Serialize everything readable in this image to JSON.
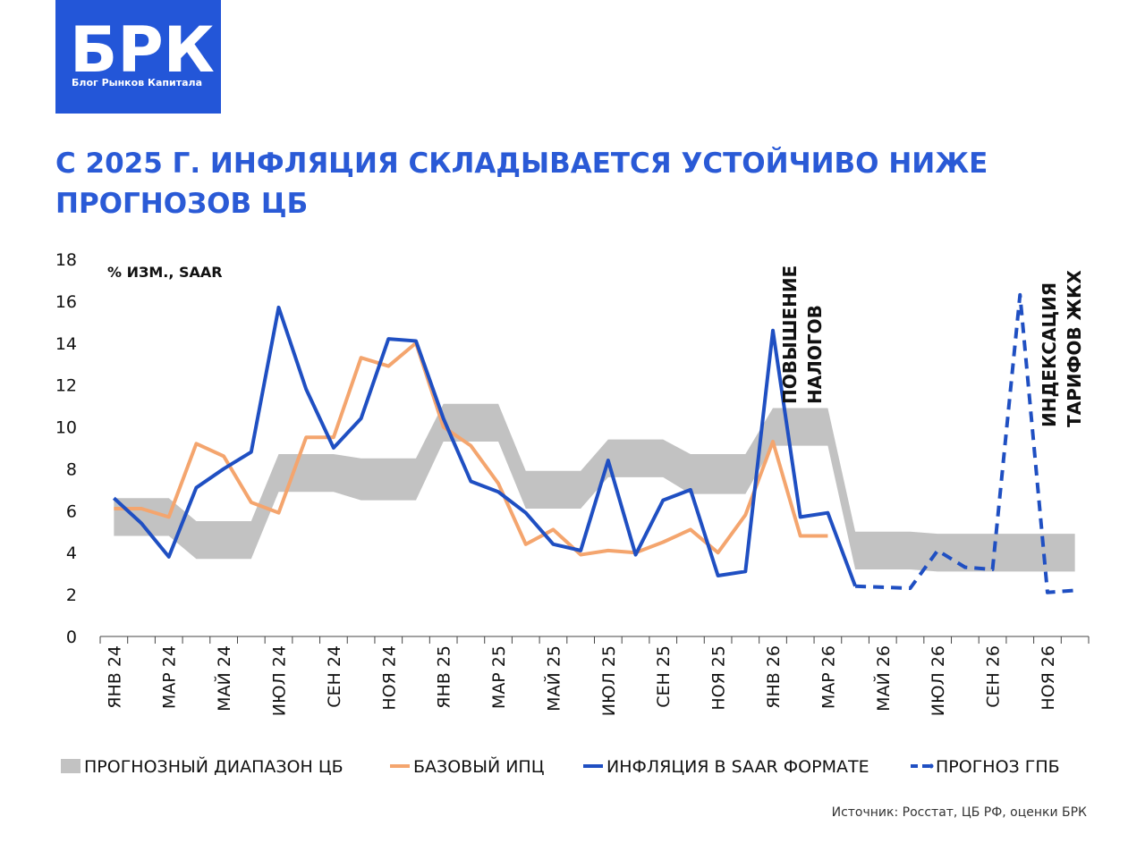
{
  "logo": {
    "title": "БРК",
    "subtitle": "Блог Рынков Капитала"
  },
  "chart_data": {
    "type": "line",
    "title": [
      "С 2025 Г. ИНФЛЯЦИЯ СКЛАДЫВАЕТСЯ УСТОЙЧИВО НИЖЕ",
      "ПРОГНОЗОВ ЦБ"
    ],
    "y_label": "% ИЗМ., SAAR",
    "source": "Источник: Росстат, ЦБ РФ, оценки БРК",
    "categories": [
      "ЯНВ 24",
      null,
      "МАР 24",
      null,
      "МАЙ 24",
      null,
      "ИЮЛ 24",
      null,
      "СЕН 24",
      null,
      "НОЯ 24",
      null,
      "ЯНВ 25",
      null,
      "МАР 25",
      null,
      "МАЙ 25",
      null,
      "ИЮЛ 25",
      null,
      "СЕН 25",
      null,
      "НОЯ 25",
      null,
      "ЯНВ 26",
      null,
      "МАР 26",
      null,
      "МАЙ 26",
      null,
      "ИЮЛ 26",
      null,
      "СЕН 26",
      null,
      "НОЯ 26",
      null
    ],
    "ylim": [
      0,
      18
    ],
    "yticks": [
      0,
      2,
      4,
      6,
      8,
      10,
      12,
      14,
      16,
      18
    ],
    "band": {
      "name": "ПРОГНОЗНЫЙ ДИАПАЗОН ЦБ",
      "color": "#c2c2c2",
      "low": [
        4.8,
        4.8,
        4.8,
        3.7,
        3.7,
        3.7,
        6.9,
        6.9,
        6.9,
        6.5,
        6.5,
        6.5,
        9.3,
        9.3,
        9.3,
        6.1,
        6.1,
        6.1,
        7.6,
        7.6,
        7.6,
        6.8,
        6.8,
        6.8,
        9.1,
        9.1,
        9.1,
        3.2,
        3.2,
        3.2,
        3.1,
        3.1,
        3.1,
        3.1,
        3.1,
        3.1
      ],
      "high": [
        6.6,
        6.6,
        6.6,
        5.5,
        5.5,
        5.5,
        8.7,
        8.7,
        8.7,
        8.5,
        8.5,
        8.5,
        11.1,
        11.1,
        11.1,
        7.9,
        7.9,
        7.9,
        9.4,
        9.4,
        9.4,
        8.7,
        8.7,
        8.7,
        10.9,
        10.9,
        10.9,
        5.0,
        5.0,
        5.0,
        4.9,
        4.9,
        4.9,
        4.9,
        4.9,
        4.9
      ]
    },
    "series": [
      {
        "name": "БАЗОВЫЙ ИПЦ",
        "color": "#f4a56e",
        "dash": false,
        "values": [
          6.1,
          6.1,
          5.7,
          9.2,
          8.6,
          6.4,
          5.9,
          9.5,
          9.5,
          13.3,
          12.9,
          14.0,
          10.0,
          9.1,
          7.3,
          4.4,
          5.1,
          3.9,
          4.1,
          4.0,
          4.5,
          5.1,
          4.0,
          5.8,
          9.3,
          4.8,
          4.8,
          null,
          null,
          null,
          null,
          null,
          null,
          null,
          null,
          null
        ]
      },
      {
        "name": "ИНФЛЯЦИЯ В SAAR ФОРМАТЕ",
        "color": "#1f4fc2",
        "dash": false,
        "values": [
          6.6,
          5.4,
          3.8,
          7.1,
          8.0,
          8.8,
          15.7,
          11.8,
          9.0,
          10.4,
          14.2,
          14.1,
          10.4,
          7.4,
          6.9,
          5.9,
          4.4,
          4.1,
          8.4,
          3.9,
          6.5,
          7.0,
          2.9,
          3.1,
          14.6,
          5.7,
          5.9,
          2.4,
          null,
          null,
          null,
          null,
          null,
          null,
          null,
          null
        ]
      },
      {
        "name": "ПРОГНОЗ ГПБ",
        "color": "#1f4fc2",
        "dash": true,
        "values": [
          null,
          null,
          null,
          null,
          null,
          null,
          null,
          null,
          null,
          null,
          null,
          null,
          null,
          null,
          null,
          null,
          null,
          null,
          null,
          null,
          null,
          null,
          null,
          null,
          null,
          null,
          null,
          2.4,
          2.35,
          2.3,
          4.1,
          3.3,
          3.2,
          16.3,
          2.1,
          2.2
        ]
      }
    ],
    "annotations": [
      {
        "lines": [
          "ПОВЫШЕНИЕ",
          "НАЛОГОВ"
        ]
      },
      {
        "lines": [
          "ИНДЕКСАЦИЯ",
          "ТАРИФОВ ЖКХ"
        ]
      }
    ]
  }
}
